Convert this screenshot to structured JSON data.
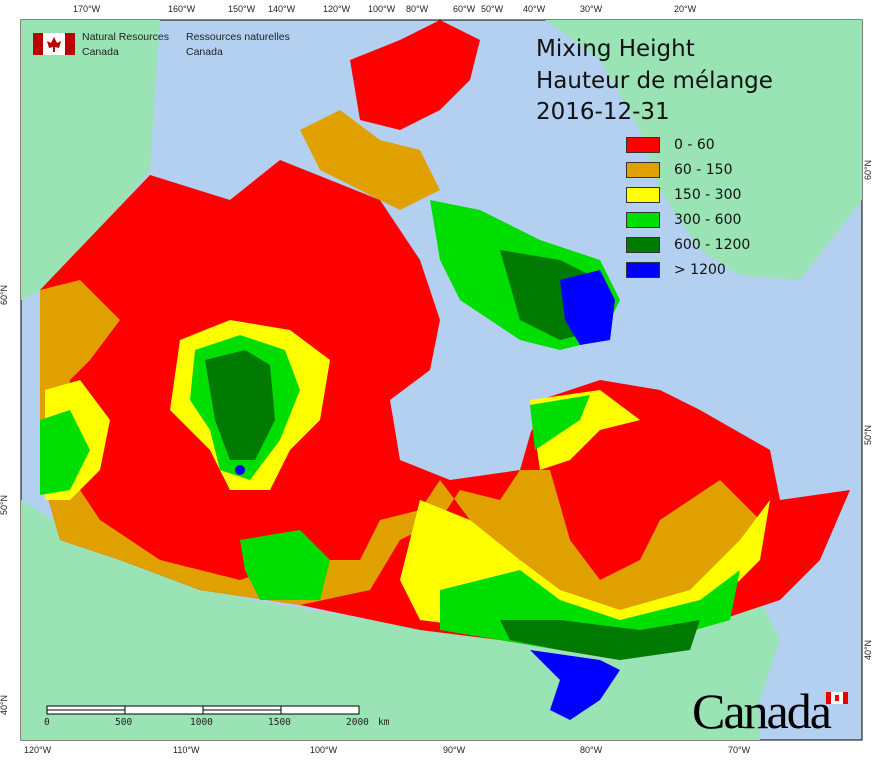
{
  "title": {
    "line1": "Mixing Height",
    "line2": "Hauteur de mélange",
    "date": "2016-12-31"
  },
  "agency": {
    "en_line1": "Natural Resources",
    "en_line2": "Canada",
    "fr_line1": "Ressources naturelles",
    "fr_line2": "Canada"
  },
  "legend": [
    {
      "label": "0 - 60",
      "color": "#ff0000"
    },
    {
      "label": "60 - 150",
      "color": "#e0a000"
    },
    {
      "label": "150 - 300",
      "color": "#ffff00"
    },
    {
      "label": "300 - 600",
      "color": "#00dd00"
    },
    {
      "label": "600 - 1200",
      "color": "#007a00"
    },
    {
      "label": "> 1200",
      "color": "#0000ff"
    }
  ],
  "top_ticks": [
    "170°W",
    "160°W",
    "150°W",
    "140°W",
    "120°W",
    "100°W",
    "80°W",
    "60°W",
    "50°W",
    "40°W",
    "30°W",
    "20°W"
  ],
  "bottom_ticks": [
    "120°W",
    "110°W",
    "100°W",
    "90°W",
    "80°W",
    "70°W"
  ],
  "left_ticks": [
    "60°N",
    "50°N",
    "40°N"
  ],
  "right_ticks": [
    "60°N",
    "50°N",
    "40°N"
  ],
  "scale_bar": {
    "labels": [
      "0",
      "500",
      "1000",
      "1500",
      "2000"
    ],
    "unit": "km"
  },
  "wordmark": "Canada",
  "colors": {
    "ocean": "#b3d0f0",
    "land": "#99e3b5"
  }
}
